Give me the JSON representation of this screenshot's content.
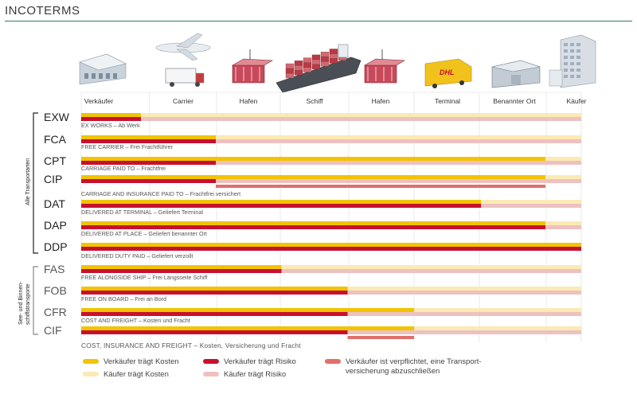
{
  "header": {
    "title": "INCOTERMS"
  },
  "stages": [
    {
      "label": "Verkäufer",
      "icon": "warehouse-icon"
    },
    {
      "label": "Carrier",
      "icon": "plane-truck-icon"
    },
    {
      "label": "Hafen",
      "icon": "port-crane-icon"
    },
    {
      "label": "Schiff",
      "icon": "container-ship-icon"
    },
    {
      "label": "Hafen",
      "icon": "port-crane-icon"
    },
    {
      "label": "Terminal",
      "icon": "dhl-van-icon"
    },
    {
      "label": "Benannter Ort",
      "icon": "depot-icon"
    },
    {
      "label": "Käufer",
      "icon": "building-icon"
    }
  ],
  "groups": [
    {
      "label": "Alle Transportarten"
    },
    {
      "label": "See- und Binnen-",
      "label2": "schiffstransporte"
    }
  ],
  "colors": {
    "seller_cost": "#f2c300",
    "buyer_cost": "#fbeab4",
    "seller_risk": "#c8102e",
    "buyer_risk": "#eec1c1",
    "insurance": "#e0706a",
    "group_bracket": "#222222",
    "group_bracket_sea": "#888888"
  },
  "terms": [
    {
      "code": "EXW",
      "group": 0,
      "desc": "EX WORKS – Ab Werk",
      "cost_stage": 0.5,
      "risk_stage": 0.5
    },
    {
      "code": "FCA",
      "group": 0,
      "desc": "FREE CARRIER – Frei Frachtführer",
      "cost_stage": 1.5,
      "risk_stage": 1.5
    },
    {
      "code": "CPT",
      "group": 0,
      "desc": "CARRIAGE PAID TO – Frachtfrei",
      "cost_stage": 6.5,
      "risk_stage": 1.5
    },
    {
      "code": "CIP",
      "group": 0,
      "desc": "CARRIAGE AND INSURANCE PAID TO – Frachtfrei versichert",
      "cost_stage": 6.5,
      "risk_stage": 1.5,
      "insurance": [
        1.5,
        6.5
      ]
    },
    {
      "code": "DAT",
      "group": 0,
      "desc": "DELIVERED AT TERMINAL – Geliefert Terminal",
      "cost_stage": 5.5,
      "risk_stage": 5.5
    },
    {
      "code": "DAP",
      "group": 0,
      "desc": "DELIVERED AT PLACE – Geliefert benannter Ort",
      "cost_stage": 6.5,
      "risk_stage": 6.5
    },
    {
      "code": "DDP",
      "group": 0,
      "desc": "DELIVERED DUTY PAID – Geliefert verzollt",
      "cost_stage": 7.5,
      "risk_stage": 7.5
    },
    {
      "code": "FAS",
      "group": 1,
      "desc": "FREE ALONGSIDE SHIP – Frei Längsseite Schiff",
      "cost_stage": 2.5,
      "risk_stage": 2.5
    },
    {
      "code": "FOB",
      "group": 1,
      "desc": "FREE ON BOARD – Frei an Bord",
      "cost_stage": 3.5,
      "risk_stage": 3.5
    },
    {
      "code": "CFR",
      "group": 1,
      "desc": "COST AND FREIGHT – Kosten und Fracht",
      "cost_stage": 4.5,
      "risk_stage": 3.5
    },
    {
      "code": "CIF",
      "group": 1,
      "desc": "COST, INSURANCE AND FREIGHT – Kosten, Versicherung und Fracht",
      "cost_stage": 4.5,
      "risk_stage": 3.5,
      "insurance": [
        3.5,
        4.5
      ]
    }
  ],
  "legend": [
    {
      "label": "Verkäufer trägt Kosten",
      "color": "#f2c300"
    },
    {
      "label": "Käufer trägt Kosten",
      "color": "#fbeab4"
    },
    {
      "label": "Verkäufer trägt Risiko",
      "color": "#c8102e"
    },
    {
      "label": "Käufer trägt Risiko",
      "color": "#eec1c1"
    },
    {
      "label": "Verkäufer ist verpflichtet, eine Transport-",
      "label2": "versicherung abzuschließen",
      "color": "#e0706a"
    }
  ]
}
